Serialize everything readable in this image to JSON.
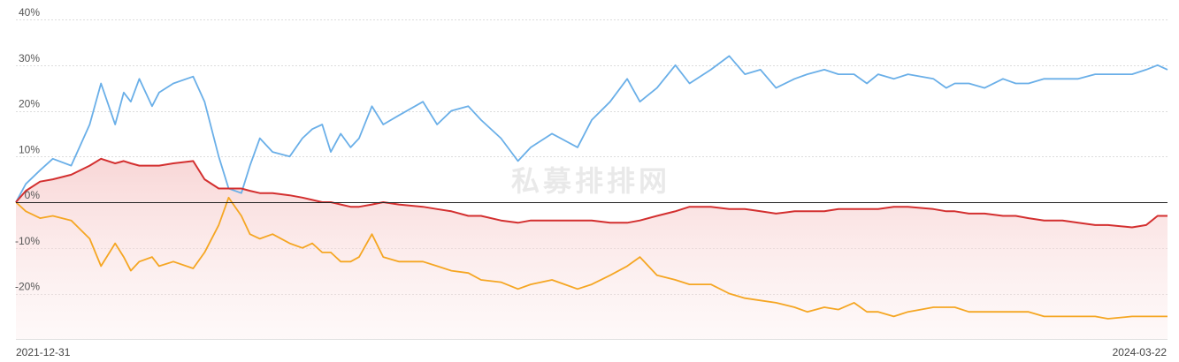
{
  "watermark": "私募排排网",
  "chart_data": {
    "type": "line",
    "x_range": [
      "2021-12-31",
      "2024-03-22"
    ],
    "x_tick_labels": [
      "2021-12-31",
      "2024-03-22"
    ],
    "ylim": [
      -30,
      40
    ],
    "y_ticks": [
      40,
      30,
      20,
      10,
      0,
      -10,
      -20
    ],
    "y_tick_labels": [
      "40%",
      "30%",
      "20%",
      "10%",
      "0%",
      "-10%",
      "-20%"
    ],
    "grid": true,
    "series": [
      {
        "color": "#6aafe8",
        "x": [
          "2021-12-31",
          "2022-01-07",
          "2022-01-17",
          "2022-01-26",
          "2022-02-08",
          "2022-02-21",
          "2022-03-01",
          "2022-03-11",
          "2022-03-17",
          "2022-03-22",
          "2022-03-28",
          "2022-04-06",
          "2022-04-11",
          "2022-04-21",
          "2022-05-05",
          "2022-05-13",
          "2022-05-23",
          "2022-05-30",
          "2022-06-08",
          "2022-06-14",
          "2022-06-21",
          "2022-06-30",
          "2022-07-12",
          "2022-07-21",
          "2022-07-28",
          "2022-08-04",
          "2022-08-10",
          "2022-08-17",
          "2022-08-24",
          "2022-08-30",
          "2022-09-08",
          "2022-09-16",
          "2022-09-27",
          "2022-10-14",
          "2022-10-24",
          "2022-11-03",
          "2022-11-15",
          "2022-11-24",
          "2022-12-08",
          "2022-12-20",
          "2022-12-29",
          "2023-01-13",
          "2023-01-31",
          "2023-02-10",
          "2023-02-23",
          "2023-03-07",
          "2023-03-16",
          "2023-03-28",
          "2023-04-10",
          "2023-04-20",
          "2023-05-05",
          "2023-05-18",
          "2023-05-29",
          "2023-06-09",
          "2023-06-20",
          "2023-07-03",
          "2023-07-12",
          "2023-07-24",
          "2023-08-03",
          "2023-08-14",
          "2023-08-23",
          "2023-08-31",
          "2023-09-11",
          "2023-09-21",
          "2023-10-09",
          "2023-10-18",
          "2023-10-24",
          "2023-11-03",
          "2023-11-14",
          "2023-11-27",
          "2023-12-06",
          "2023-12-15",
          "2023-12-26",
          "2024-01-08",
          "2024-01-19",
          "2024-01-31",
          "2024-02-09",
          "2024-02-26",
          "2024-03-07",
          "2024-03-15",
          "2024-03-22"
        ],
        "y": [
          0,
          4,
          7,
          9.5,
          8,
          17,
          26,
          17,
          24,
          22,
          27,
          21,
          24,
          26,
          27.5,
          22,
          10,
          3,
          2,
          8,
          14,
          11,
          10,
          14,
          16,
          17,
          11,
          15,
          12,
          14,
          21,
          17,
          19,
          22,
          17,
          20,
          21,
          18,
          14,
          9,
          12,
          15,
          12,
          18,
          22,
          27,
          22,
          25,
          30,
          26,
          29,
          32,
          28,
          29,
          25,
          27,
          28,
          29,
          28,
          28,
          26,
          28,
          27,
          28,
          27,
          25,
          26,
          26,
          25,
          27,
          26,
          26,
          27,
          27,
          27,
          28,
          28,
          28,
          29,
          30,
          29
        ]
      },
      {
        "color": "#f5a623",
        "x": [
          "2021-12-31",
          "2022-01-07",
          "2022-01-17",
          "2022-01-26",
          "2022-02-08",
          "2022-02-21",
          "2022-03-01",
          "2022-03-11",
          "2022-03-17",
          "2022-03-22",
          "2022-03-28",
          "2022-04-06",
          "2022-04-11",
          "2022-04-21",
          "2022-05-05",
          "2022-05-13",
          "2022-05-23",
          "2022-05-30",
          "2022-06-08",
          "2022-06-14",
          "2022-06-21",
          "2022-06-30",
          "2022-07-12",
          "2022-07-21",
          "2022-07-28",
          "2022-08-04",
          "2022-08-10",
          "2022-08-17",
          "2022-08-24",
          "2022-08-30",
          "2022-09-08",
          "2022-09-16",
          "2022-09-27",
          "2022-10-14",
          "2022-10-24",
          "2022-11-03",
          "2022-11-15",
          "2022-11-24",
          "2022-12-08",
          "2022-12-20",
          "2022-12-29",
          "2023-01-13",
          "2023-01-31",
          "2023-02-10",
          "2023-02-23",
          "2023-03-07",
          "2023-03-16",
          "2023-03-28",
          "2023-04-10",
          "2023-04-20",
          "2023-05-05",
          "2023-05-18",
          "2023-05-29",
          "2023-06-09",
          "2023-06-20",
          "2023-07-03",
          "2023-07-12",
          "2023-07-24",
          "2023-08-03",
          "2023-08-14",
          "2023-08-23",
          "2023-08-31",
          "2023-09-11",
          "2023-09-21",
          "2023-10-09",
          "2023-10-18",
          "2023-10-24",
          "2023-11-03",
          "2023-11-14",
          "2023-11-27",
          "2023-12-06",
          "2023-12-15",
          "2023-12-26",
          "2024-01-08",
          "2024-01-19",
          "2024-01-31",
          "2024-02-09",
          "2024-02-26",
          "2024-03-07",
          "2024-03-15",
          "2024-03-22"
        ],
        "y": [
          0,
          -2,
          -3.5,
          -3,
          -4,
          -8,
          -14,
          -9,
          -12,
          -15,
          -13,
          -12,
          -14,
          -13,
          -14.5,
          -11,
          -5,
          1,
          -3,
          -7,
          -8,
          -7,
          -9,
          -10,
          -9,
          -11,
          -11,
          -13,
          -13,
          -12,
          -7,
          -12,
          -13,
          -13,
          -14,
          -15,
          -15.5,
          -17,
          -17.5,
          -19,
          -18,
          -17,
          -19,
          -18,
          -16,
          -14,
          -12,
          -16,
          -17,
          -18,
          -18,
          -20,
          -21,
          -21.5,
          -22,
          -23,
          -24,
          -23,
          -23.5,
          -22,
          -24,
          -24,
          -25,
          -24,
          -23,
          -23,
          -23,
          -24,
          -24,
          -24,
          -24,
          -24,
          -25,
          -25,
          -25,
          -25,
          -25.5,
          -25,
          -25,
          -25,
          -25
        ]
      },
      {
        "color": "#d32f2f",
        "x": [
          "2021-12-31",
          "2022-01-07",
          "2022-01-17",
          "2022-01-26",
          "2022-02-08",
          "2022-02-21",
          "2022-03-01",
          "2022-03-11",
          "2022-03-17",
          "2022-03-22",
          "2022-03-28",
          "2022-04-06",
          "2022-04-11",
          "2022-04-21",
          "2022-05-05",
          "2022-05-13",
          "2022-05-23",
          "2022-05-30",
          "2022-06-08",
          "2022-06-14",
          "2022-06-21",
          "2022-06-30",
          "2022-07-12",
          "2022-07-21",
          "2022-07-28",
          "2022-08-04",
          "2022-08-10",
          "2022-08-17",
          "2022-08-24",
          "2022-08-30",
          "2022-09-08",
          "2022-09-16",
          "2022-09-27",
          "2022-10-14",
          "2022-10-24",
          "2022-11-03",
          "2022-11-15",
          "2022-11-24",
          "2022-12-08",
          "2022-12-20",
          "2022-12-29",
          "2023-01-13",
          "2023-01-31",
          "2023-02-10",
          "2023-02-23",
          "2023-03-07",
          "2023-03-16",
          "2023-03-28",
          "2023-04-10",
          "2023-04-20",
          "2023-05-05",
          "2023-05-18",
          "2023-05-29",
          "2023-06-09",
          "2023-06-20",
          "2023-07-03",
          "2023-07-12",
          "2023-07-24",
          "2023-08-03",
          "2023-08-14",
          "2023-08-23",
          "2023-08-31",
          "2023-09-11",
          "2023-09-21",
          "2023-10-09",
          "2023-10-18",
          "2023-10-24",
          "2023-11-03",
          "2023-11-14",
          "2023-11-27",
          "2023-12-06",
          "2023-12-15",
          "2023-12-26",
          "2024-01-08",
          "2024-01-19",
          "2024-01-31",
          "2024-02-09",
          "2024-02-26",
          "2024-03-07",
          "2024-03-15",
          "2024-03-22"
        ],
        "y": [
          0,
          2.5,
          4.5,
          5,
          6,
          8,
          9.5,
          8.5,
          9,
          8.5,
          8,
          8,
          8,
          8.5,
          9,
          5,
          3,
          3,
          3,
          2.5,
          2,
          2,
          1.5,
          1,
          0.5,
          0,
          0,
          -0.5,
          -1,
          -1,
          -0.5,
          0,
          -0.5,
          -1,
          -1.5,
          -2,
          -3,
          -3,
          -4,
          -4.5,
          -4,
          -4,
          -4,
          -4,
          -4.5,
          -4.5,
          -4,
          -3,
          -2,
          -1,
          -1,
          -1.5,
          -1.5,
          -2,
          -2.5,
          -2,
          -2,
          -2,
          -1.5,
          -1.5,
          -1.5,
          -1.5,
          -1,
          -1,
          -1.5,
          -2,
          -2,
          -2.5,
          -2.5,
          -3,
          -3,
          -3.5,
          -4,
          -4,
          -4.5,
          -5,
          -5,
          -5.5,
          -5,
          -3,
          -3
        ]
      }
    ]
  }
}
